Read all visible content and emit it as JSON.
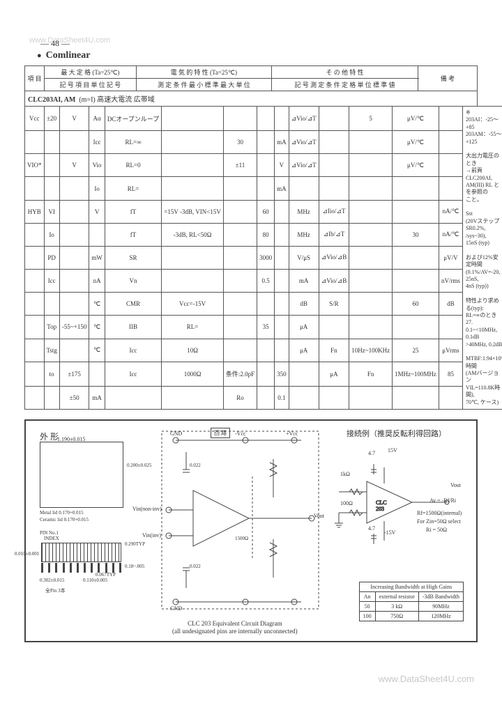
{
  "page_number": "— 48 —",
  "watermark_top": "www.DataSheet4U.com",
  "watermark_bottom": "www.DataSheet4U.com",
  "brand": "Comlinear",
  "header": {
    "row1": [
      "",
      "最 大 定 格 (Ta=25℃)",
      "電 気 的 特 性 (Ta=25℃)",
      "そ の 他 特 性",
      ""
    ],
    "row2": [
      "項 目",
      "記 号 項 目 単 位 記 号",
      "測 定 条 件 最 小 標 準 最 大 単 位",
      "記 号 測 定 条 件 定 格 単 位 標 準 値",
      "備 考"
    ]
  },
  "part": {
    "name": "CLC203AI, AM",
    "desc": "(m=I) 高速大電流 広帯域"
  },
  "spec_rows": [
    [
      "Vcc",
      "±20",
      "V",
      "Aα",
      "DCオープンループ",
      "",
      "",
      "",
      "",
      "⊿Vio/⊿T",
      "",
      "5",
      "μV/℃"
    ],
    [
      "",
      "",
      "",
      "Icc",
      "RL=∞",
      "",
      "30",
      "",
      "mA",
      "⊿Vio/⊿T",
      "",
      "",
      "μV/℃"
    ],
    [
      "VIO*",
      "",
      "V",
      "Vio",
      "RL=0",
      "",
      "±11",
      "",
      "V",
      "⊿Vio/⊿T",
      "",
      "",
      "μV/℃"
    ],
    [
      "",
      "",
      "",
      "Io",
      "RL=",
      "",
      "",
      "",
      "mA",
      "",
      "",
      "",
      ""
    ],
    [
      "HYB",
      "VI",
      "",
      "V",
      "fT",
      "=15V -3dB, VIN<15V",
      "",
      "60",
      "",
      "MHz",
      "⊿Iio/⊿T",
      "",
      "",
      "nA/℃"
    ],
    [
      "",
      "Io",
      "",
      "",
      "fT",
      "-3dB, RL<50Ω",
      "",
      "80",
      "",
      "MHz",
      "⊿Ib/⊿T",
      "",
      "30",
      "nA/℃"
    ],
    [
      "",
      "PD",
      "",
      "mW",
      "SR",
      "",
      "",
      "3000",
      "",
      "V/μS",
      "⊿Vio/⊿B",
      "",
      "",
      "μV/V"
    ],
    [
      "",
      "Icc",
      "",
      "nA",
      "Vn",
      "",
      "",
      "0.5",
      "",
      "mA",
      "⊿Vio/⊿B",
      "",
      "",
      "nV/rms"
    ],
    [
      "",
      "",
      "",
      "℃",
      "CMR",
      "Vcc=-15V",
      "",
      "",
      "",
      "dB",
      "S/R",
      "",
      "60",
      "dB"
    ],
    [
      "",
      "Top",
      "-55~+150",
      "℃",
      "IIB",
      "RL=",
      "",
      "35",
      "",
      "μA",
      "",
      "",
      "",
      ""
    ],
    [
      "",
      "Tstg",
      "",
      "℃",
      "Icc",
      "10Ω",
      "",
      "",
      "",
      "μA",
      "Fn",
      "10Hz~100KHz",
      "25",
      "μVrms"
    ],
    [
      "",
      "to",
      "±175",
      "",
      "Icc",
      "1000Ω",
      "条件:2.0pF",
      "",
      "350",
      "",
      "μA",
      "Fn",
      "1MHz~100MHz",
      "85",
      "μVrms"
    ],
    [
      "",
      "",
      "±50",
      "mA",
      "",
      "",
      "Ro",
      "",
      "0.1",
      "",
      "",
      "",
      "",
      ""
    ]
  ],
  "notes": "※\n203AI：-25～+85\n203AM：-55～+125\n\n大出力電圧のとき\n→前頁 CLC200AI,\nAM(III) RL とを参照の\nこと。\n\nSst\n(20VステップSR0.2%,\n/sys~30),\n15nS (typ)\n\nおよび12%安定時間\n(0.1%/AV=-20, 25nS,\n4nS (typ))\n\n特性より求める(typ):\nRL=∞のとき 27.\n0.1~<10MHz, 0.1dB\n>40MHz, 0.2dB\n\nMTBF:1.94×10⁶時間\n(AMバージョン\nVIL=110.8K時間),\n70℃, ケース)",
  "diagram": {
    "shape_label": "外 形",
    "dim_w": "1.190±0.015",
    "dim_side": "0.200±0.025",
    "metal_note": "Metal lid 0.170+0.015",
    "ceramic_note": "Ceramic lid 0.170+0.015",
    "pin1_label": "PIN No.1",
    "index_label": "INDEX",
    "dim_pin_w": "0.010±0.001",
    "dim_lead": "0.290TYP",
    "dim_span": "0.110±0.005",
    "dim_pitch": "0.067TYP",
    "dim_row": "0.302±0.015",
    "pin_count_note": "全Pin 3本",
    "pin_len": "0.18~.005",
    "circuit_title_en": "CLC 203 Equivalent Circuit Diagram",
    "circuit_subtitle": "(all undesignated pins are internally unconnected)",
    "circuit_label_jp": "回 路",
    "example_title": "接続例（推奨反転利得回路）",
    "pins": {
      "gnd": "GND",
      "vee": "-Vcc",
      "vcc": "+Vcc",
      "vinp": "Vin(non-inv)",
      "vinn": "Vin(inv)",
      "vout": "Vout"
    },
    "example_vals": {
      "v15p": "15V",
      "v15n": "-15V",
      "r1": "4.7",
      "r2": "1kΩ",
      "r3": "100Ω",
      "r4": "4.7",
      "part": "CLC 203",
      "out": "Vout",
      "gain_eq": "Av = -Rf/Ri",
      "note1": "Rf=1500Ω(internal)",
      "note2": "For Zin=50Ω select",
      "note3": "Ri = 50Ω"
    },
    "bw_title": "Increasing Bandwidth at High Gains",
    "bw_table": {
      "h": [
        "An",
        "external resistor",
        "-3dB Bandwidth"
      ],
      "r1": [
        "50",
        "3 kΩ",
        "90MHz"
      ],
      "r2": [
        "100",
        "750Ω",
        "120MHz"
      ]
    }
  }
}
